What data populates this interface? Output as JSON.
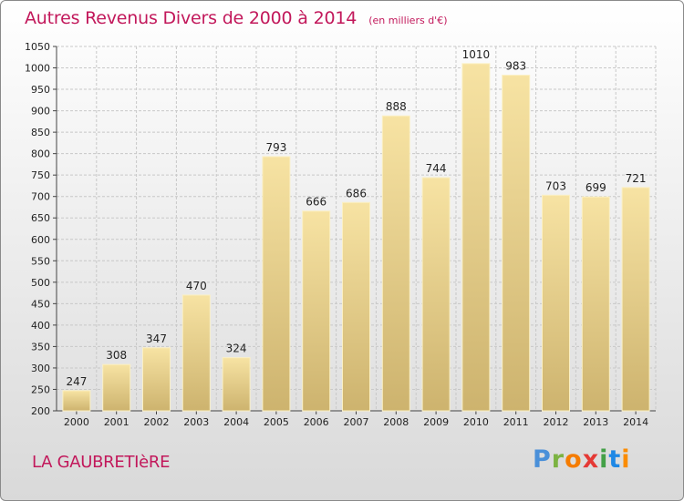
{
  "header": {
    "title": "Autres Revenus Divers de 2000 à 2014",
    "subtitle": "(en milliers d'€)"
  },
  "footer": {
    "commune": "LA GAUBRETIèRE",
    "brand": "Proxiti"
  },
  "colors": {
    "title": "#c2185b",
    "bar_light": "#f7e3a3",
    "bar_dark": "#cdb36e",
    "grid": "#c8c8c8"
  },
  "chart_data": {
    "type": "bar",
    "title": "Autres Revenus Divers de 2000 à 2014",
    "subtitle": "(en milliers d'€)",
    "xlabel": "",
    "ylabel": "",
    "categories": [
      "2000",
      "2001",
      "2002",
      "2003",
      "2004",
      "2005",
      "2006",
      "2007",
      "2008",
      "2009",
      "2010",
      "2011",
      "2012",
      "2013",
      "2014"
    ],
    "values": [
      247,
      308,
      347,
      470,
      324,
      793,
      666,
      686,
      888,
      744,
      1010,
      983,
      703,
      699,
      721
    ],
    "ylim": [
      200,
      1050
    ],
    "yticks": [
      200,
      250,
      300,
      350,
      400,
      450,
      500,
      550,
      600,
      650,
      700,
      750,
      800,
      850,
      900,
      950,
      1000,
      1050
    ],
    "grid": true,
    "data_labels": true,
    "legend": "none"
  }
}
